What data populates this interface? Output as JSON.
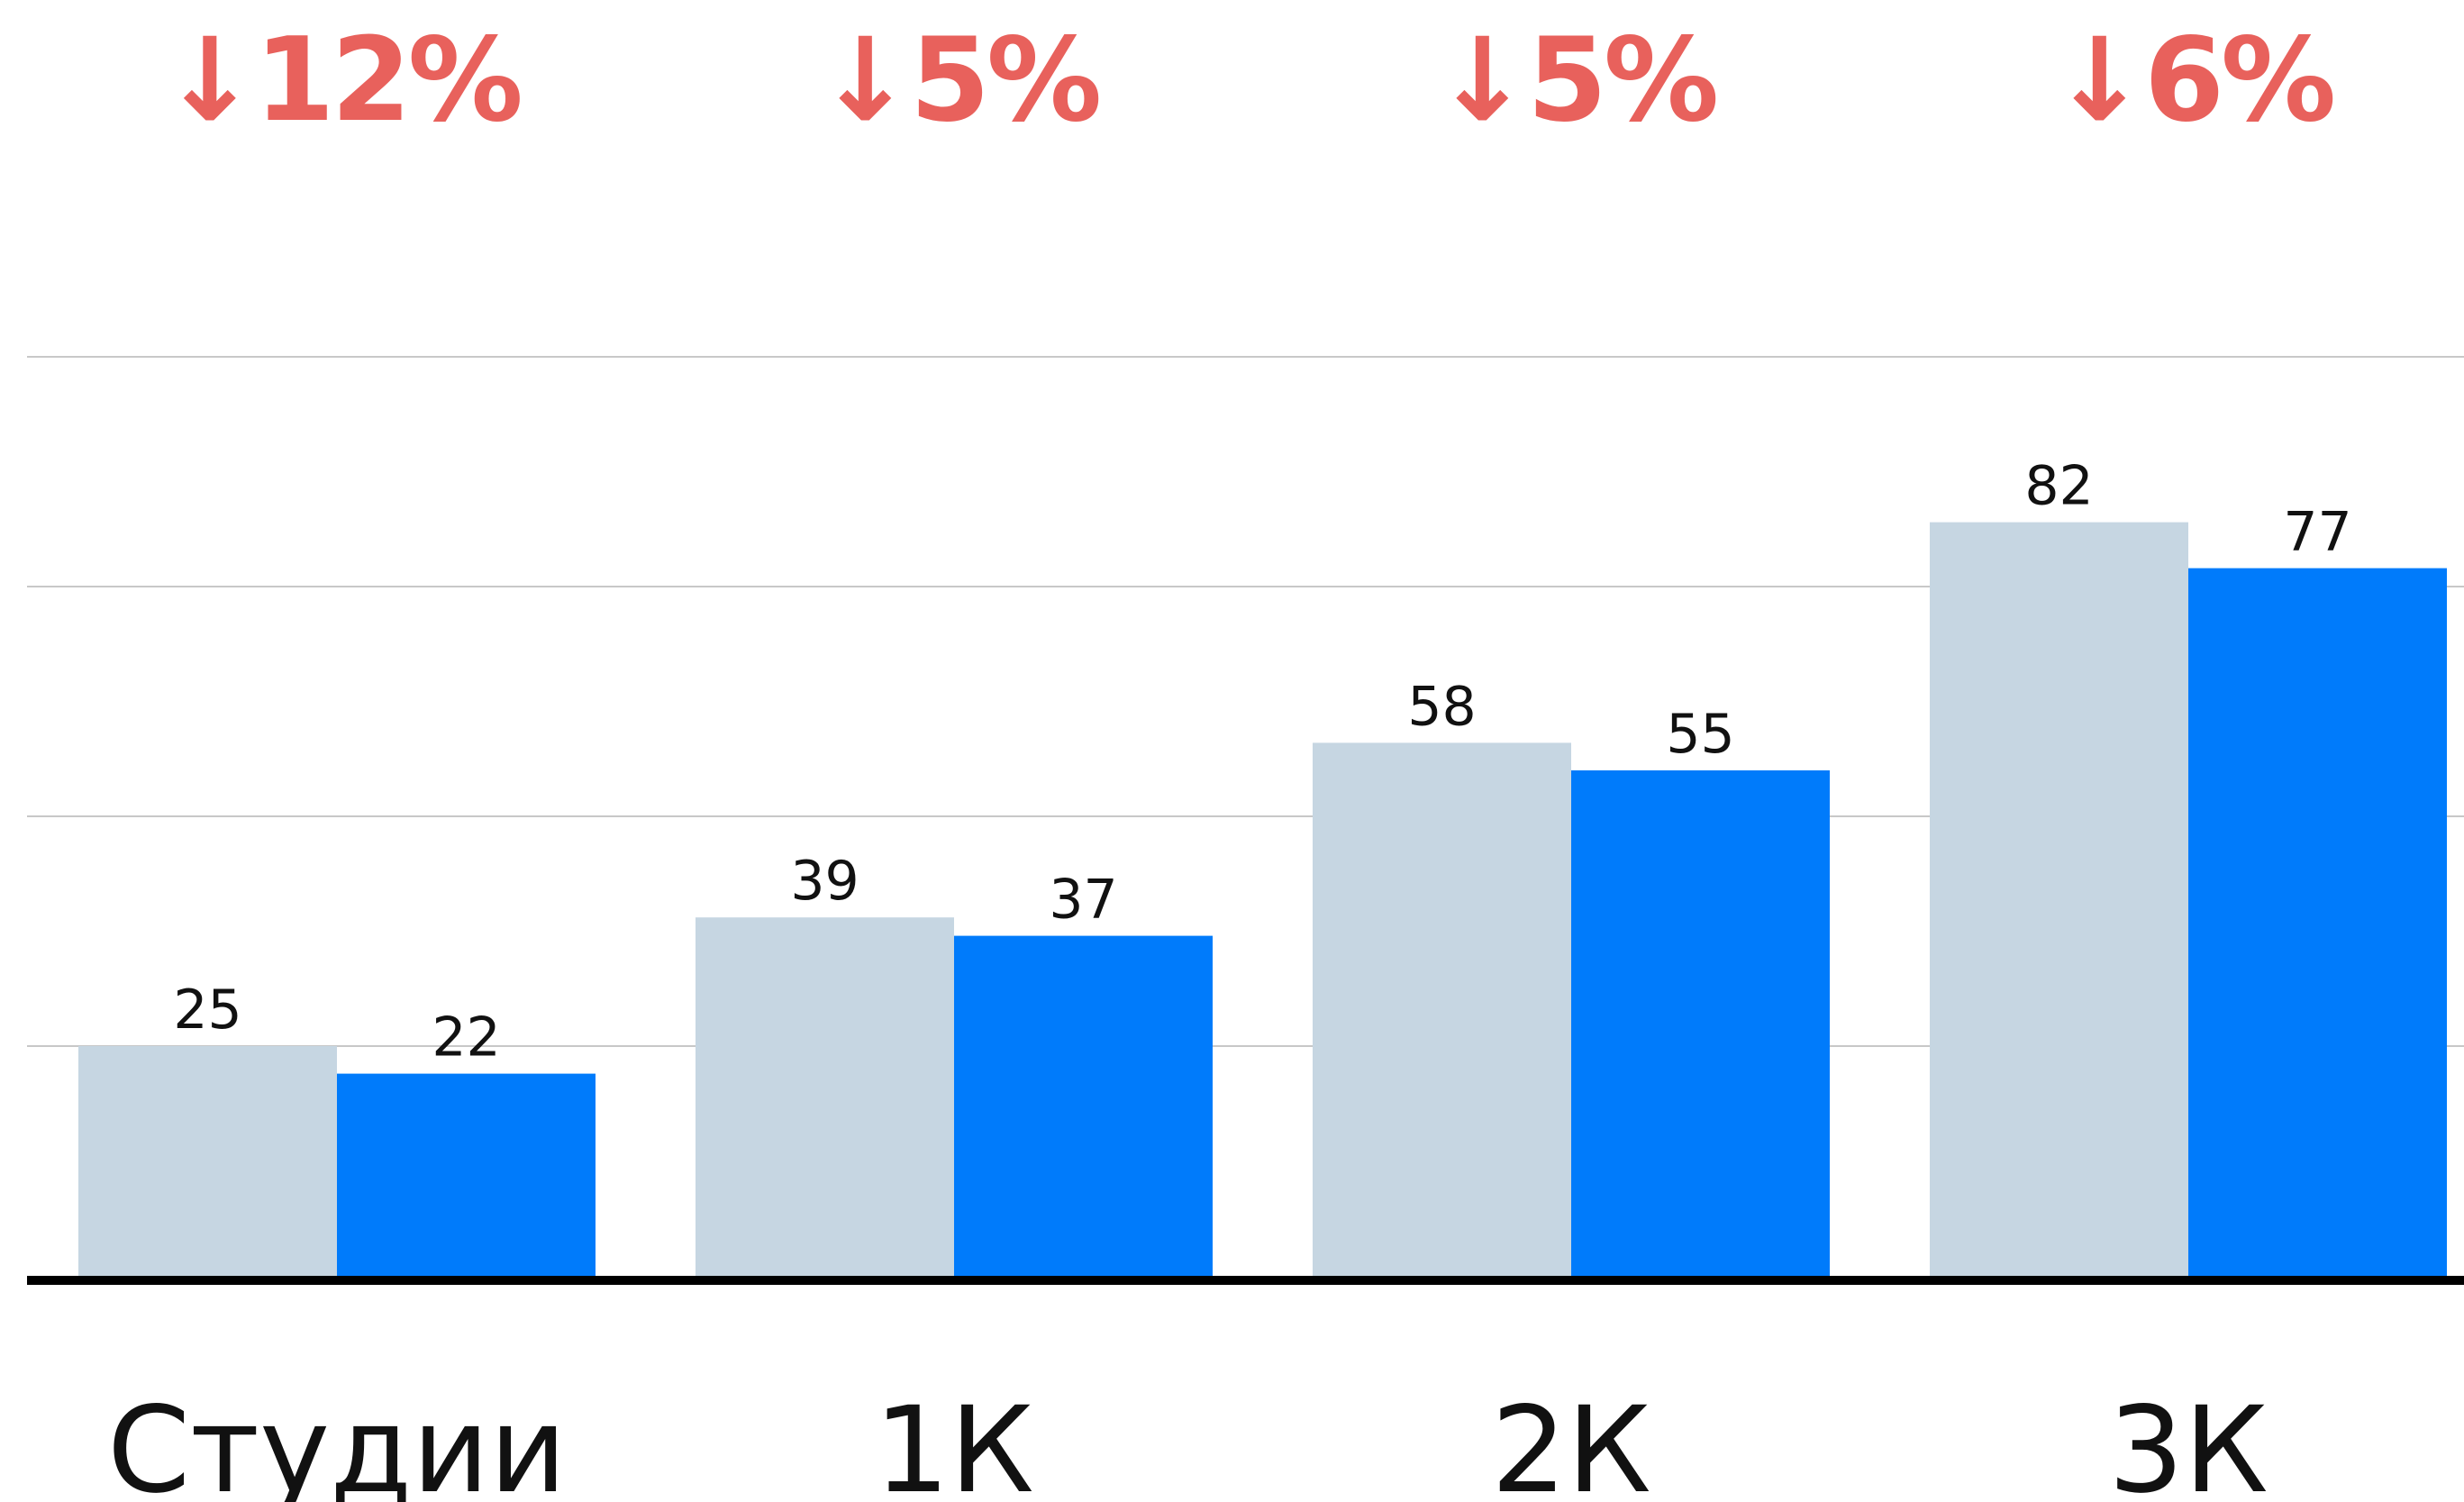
{
  "chart_data": {
    "type": "bar",
    "categories": [
      "Студии",
      "1К",
      "2К",
      "3К"
    ],
    "changes": [
      "↓12%",
      "↓5%",
      "↓5%",
      "↓6%"
    ],
    "series": [
      {
        "values": [
          25,
          39,
          58,
          82
        ],
        "labels": [
          "25",
          "39",
          "58",
          "82"
        ]
      },
      {
        "values": [
          22,
          37,
          55,
          77
        ],
        "labels": [
          "22",
          "37",
          "55",
          "77"
        ]
      }
    ],
    "ylim": [
      0,
      100
    ],
    "gridlines": [
      25,
      50,
      75,
      100
    ],
    "grid": true,
    "title": "",
    "xlabel": "",
    "ylabel": ""
  },
  "colors": {
    "series_0": "#C6D6E2",
    "series_1": "#007BFB",
    "change": "#E8615C",
    "grid": "#C8C8C8",
    "axis": "#000000"
  }
}
